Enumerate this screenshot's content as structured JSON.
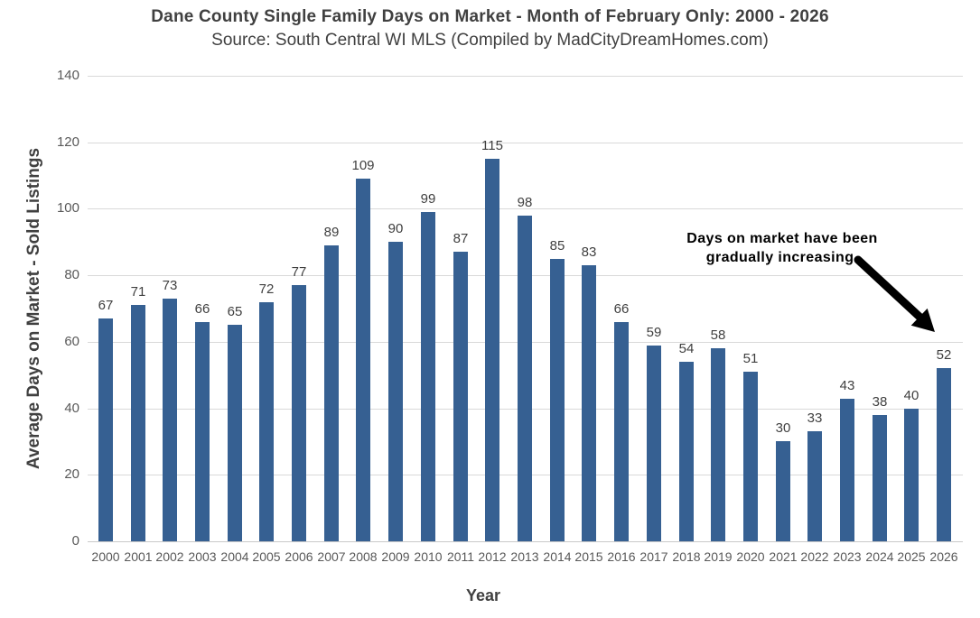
{
  "chart_data": {
    "type": "bar",
    "title": "Dane County Single Family Days on Market - Month of February Only: 2000 - 2026",
    "subtitle": "Source: South Central WI MLS (Compiled by MadCityDreamHomes.com)",
    "categories": [
      "2000",
      "2001",
      "2002",
      "2003",
      "2004",
      "2005",
      "2006",
      "2007",
      "2008",
      "2009",
      "2010",
      "2011",
      "2012",
      "2013",
      "2014",
      "2015",
      "2016",
      "2017",
      "2018",
      "2019",
      "2020",
      "2021",
      "2022",
      "2023",
      "2024",
      "2025",
      "2026"
    ],
    "values": [
      67,
      71,
      73,
      66,
      65,
      72,
      77,
      89,
      109,
      90,
      99,
      87,
      115,
      98,
      85,
      83,
      66,
      59,
      54,
      58,
      51,
      30,
      33,
      43,
      38,
      40,
      52
    ],
    "xlabel": "Year",
    "ylabel": "Average Days on Market - Sold Listings",
    "ylim": [
      0,
      140
    ],
    "yticks": [
      0,
      20,
      40,
      60,
      80,
      100,
      120,
      140
    ],
    "grid": true,
    "legend": "none",
    "data_labels": true
  },
  "annotation": {
    "lines": [
      "Days on market have been",
      "gradually increasing."
    ],
    "arrow_target": "2026 bar"
  },
  "colors": {
    "bar": "#366092",
    "gridline": "#d9d9d9",
    "axis_line": "#c9c9c9",
    "title_text": "#404040",
    "tick_label": "#595959",
    "data_label": "#3f3f3f",
    "annotation_text": "#000000",
    "annotation_arrow": "#000000",
    "background": "#ffffff"
  }
}
